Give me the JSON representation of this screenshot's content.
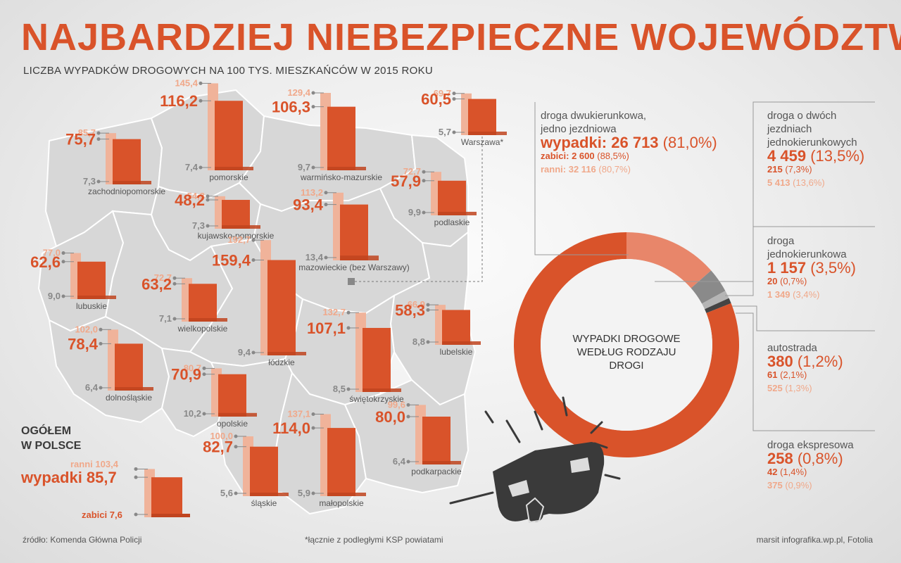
{
  "title": "NAJBARDZIEJ NIEBEZPIECZNE WOJEWÓDZTWA",
  "subtitle": "LICZBA WYPADKÓW DROGOWYCH NA 100 TYS. MIESZKAŃCÓW W 2015 ROKU",
  "colors": {
    "accident": "#d9532a",
    "injured": "#f0b39a",
    "killed": "#c0441f",
    "map": "#d7d7d7",
    "map_border": "#ffffff",
    "text": "#555555"
  },
  "chart_data": [
    {
      "type": "bar",
      "series_keys": [
        "wypadki",
        "ranni",
        "zabici"
      ],
      "regions": [
        {
          "name": "pomorskie",
          "ranni": "145,4",
          "wypadki": "116,2",
          "zabici": "7,4"
        },
        {
          "name": "zachodniopomorskie",
          "ranni": "85,7",
          "wypadki": "75,7",
          "zabici": "7,3"
        },
        {
          "name": "warmińsko-mazurskie",
          "ranni": "129,4",
          "wypadki": "106,3",
          "zabici": "9,7"
        },
        {
          "name": "Warszawa*",
          "ranni": "69,7",
          "wypadki": "60,5",
          "zabici": "5,7"
        },
        {
          "name": "kujawsko-pomorskie",
          "ranni": "54,3",
          "wypadki": "48,2",
          "zabici": "7,3"
        },
        {
          "name": "podlaskie",
          "ranni": "72,7",
          "wypadki": "57,9",
          "zabici": "9,9"
        },
        {
          "name": "mazowieckie (bez Warszawy)",
          "ranni": "113,2",
          "wypadki": "93,4",
          "zabici": "13,4"
        },
        {
          "name": "lubuskie",
          "ranni": "77,0",
          "wypadki": "62,6",
          "zabici": "9,0"
        },
        {
          "name": "wielkopolskie",
          "ranni": "72,7",
          "wypadki": "63,2",
          "zabici": "7,1"
        },
        {
          "name": "łódzkie",
          "ranni": "192,7",
          "wypadki": "159,4",
          "zabici": "9,4"
        },
        {
          "name": "lubelskie",
          "ranni": "66,9",
          "wypadki": "58,3",
          "zabici": "8,8"
        },
        {
          "name": "świętokrzyskie",
          "ranni": "132,7",
          "wypadki": "107,1",
          "zabici": "8,5"
        },
        {
          "name": "dolnośląskie",
          "ranni": "102,0",
          "wypadki": "78,4",
          "zabici": "6,4"
        },
        {
          "name": "opolskie",
          "ranni": "80,7",
          "wypadki": "70,9",
          "zabici": "10,2"
        },
        {
          "name": "podkarpackie",
          "ranni": "99,6",
          "wypadki": "80,0",
          "zabici": "6,4"
        },
        {
          "name": "śląskie",
          "ranni": "100,0",
          "wypadki": "82,7",
          "zabici": "5,6"
        },
        {
          "name": "małopolskie",
          "ranni": "137,1",
          "wypadki": "114,0",
          "zabici": "5,9"
        }
      ],
      "total": {
        "heading_line1": "OGÓŁEM",
        "heading_line2": "W POLSCE",
        "ranni": "ranni 103,4",
        "wypadki": "wypadki 85,7",
        "zabici": "zabici 7,6",
        "values": {
          "ranni": 103.4,
          "wypadki": 85.7,
          "zabici": 7.6
        }
      }
    },
    {
      "type": "pie",
      "title_lines": [
        "WYPADKI DROGOWE",
        "WEDŁUG RODZAJU",
        "DROGI"
      ],
      "categories": [
        {
          "name_lines": [
            "droga dwukierunkowa,",
            "jedno jezdniowa"
          ],
          "prefix": "wypadki: ",
          "value": 26713,
          "value_text": "26 713",
          "pct_text": "(81,0%)",
          "zabici_label": "zabici: ",
          "zabici": "2 600",
          "zabici_pct": "(88,5%)",
          "ranni_label": "ranni: ",
          "ranni": "32 116",
          "ranni_pct": "(80,7%)",
          "color": "#d9532a"
        },
        {
          "name_lines": [
            "droga o dwóch",
            "jezdniach",
            "jednokierunkowych"
          ],
          "prefix": "",
          "value": 4459,
          "value_text": "4 459",
          "pct_text": "(13,5%)",
          "zabici_label": "",
          "zabici": "215",
          "zabici_pct": "(7,3%)",
          "ranni_label": "",
          "ranni": "5 413",
          "ranni_pct": "(13,6%)",
          "color": "#e8866a"
        },
        {
          "name_lines": [
            "droga",
            "jednokierunkowa"
          ],
          "prefix": "",
          "value": 1157,
          "value_text": "1 157",
          "pct_text": "(3,5%)",
          "zabici_label": "",
          "zabici": "20",
          "zabici_pct": "(0,7%)",
          "ranni_label": "",
          "ranni": "1 349",
          "ranni_pct": "(3,4%)",
          "color": "#8a8a8a"
        },
        {
          "name_lines": [
            "autostrada"
          ],
          "prefix": "",
          "value": 380,
          "value_text": "380",
          "pct_text": "(1,2%)",
          "zabici_label": "",
          "zabici": "61",
          "zabici_pct": "(2,1%)",
          "ranni_label": "",
          "ranni": "525",
          "ranni_pct": "(1,3%)",
          "color": "#b5b5b5"
        },
        {
          "name_lines": [
            "droga ekspresowa"
          ],
          "prefix": "",
          "value": 258,
          "value_text": "258",
          "pct_text": "(0,8%)",
          "zabici_label": "",
          "zabici": "42",
          "zabici_pct": "(1,4%)",
          "ranni_label": "",
          "ranni": "375",
          "ranni_pct": "(0,9%)",
          "color": "#444444"
        }
      ]
    }
  ],
  "footer": {
    "source": "źródło: Komenda Główna Policji",
    "note": "*łącznie z podległymi KSP powiatami",
    "credit": "marsit infografika.wp.pl, Fotolia"
  }
}
